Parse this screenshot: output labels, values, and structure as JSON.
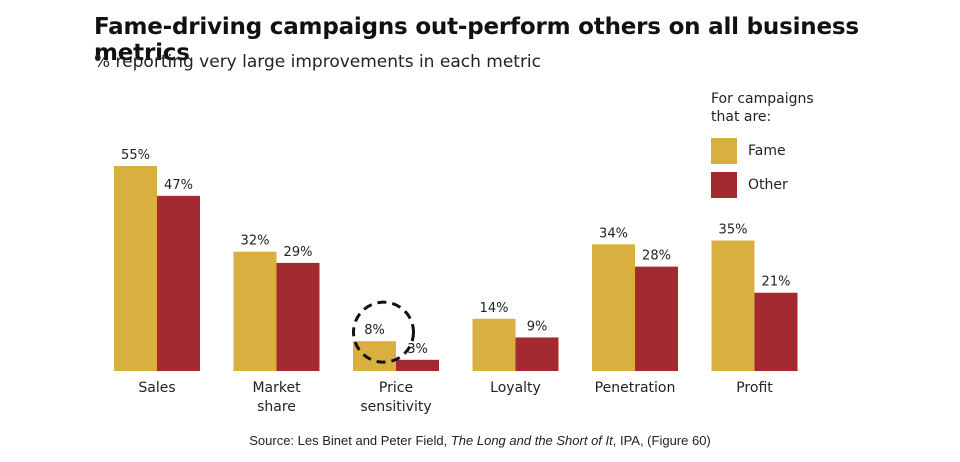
{
  "title": "Fame-driving campaigns out-perform others on all business metrics",
  "subtitle": "% reporting very large improvements in each metric",
  "legend": {
    "title_line1": "For campaigns",
    "title_line2": "that are:"
  },
  "source": {
    "prefix": "Source: Les Binet and Peter Field, ",
    "book": "The Long and the Short of It",
    "suffix": ", IPA, (Figure 60)"
  },
  "colors": {
    "fame": "#D9B03F",
    "other": "#A42A32"
  },
  "chart_data": {
    "type": "bar",
    "categories": [
      [
        "Sales"
      ],
      [
        "Market",
        "share"
      ],
      [
        "Price",
        "sensitivity"
      ],
      [
        "Loyalty"
      ],
      [
        "Penetration"
      ],
      [
        "Profit"
      ]
    ],
    "series": [
      {
        "name": "Fame",
        "values": [
          55,
          32,
          8,
          14,
          34,
          35
        ],
        "labels": [
          "55%",
          "32%",
          "8%",
          "14%",
          "34%",
          "35%"
        ]
      },
      {
        "name": "Other",
        "values": [
          47,
          29,
          3,
          9,
          28,
          21
        ],
        "labels": [
          "47%",
          "29%",
          "3%",
          "9%",
          "28%",
          "21%"
        ]
      }
    ],
    "ylim": [
      0,
      55
    ],
    "legend_position": "top-right",
    "highlight": {
      "category_index": 2,
      "series_index": 0,
      "style": "dashed-circle"
    }
  }
}
